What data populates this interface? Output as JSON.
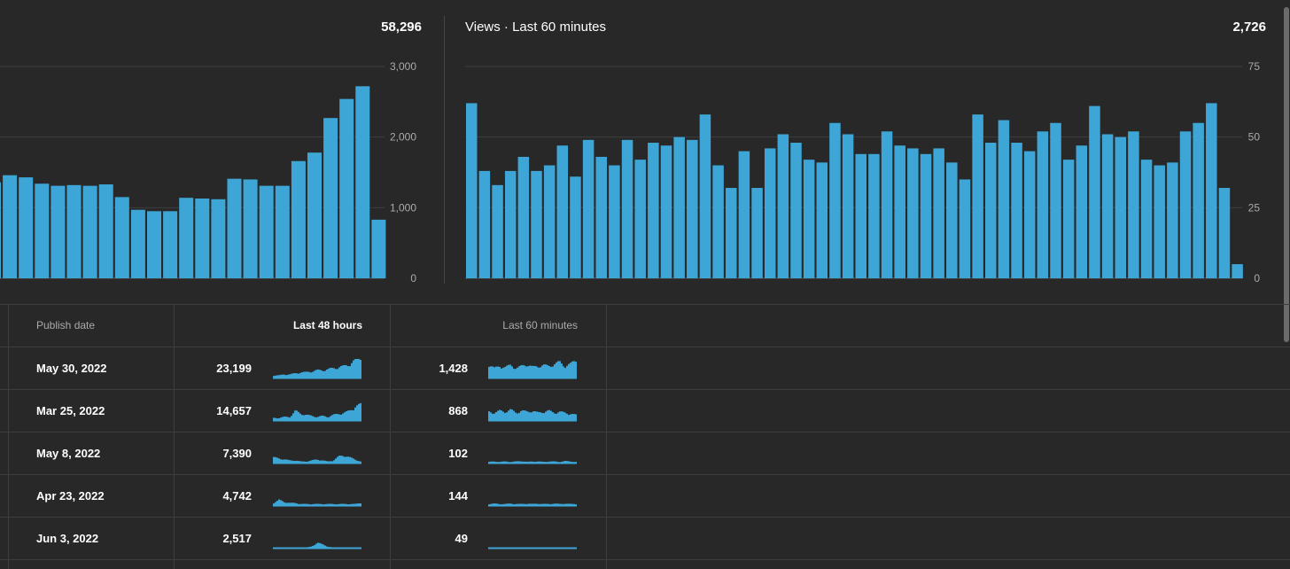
{
  "left_panel": {
    "total": "58,296"
  },
  "right_panel": {
    "title": "Views · Last 60 minutes",
    "total": "2,726"
  },
  "table": {
    "headers": {
      "publish_date": "Publish date",
      "last_48_hours": "Last 48 hours",
      "last_60_minutes": "Last 60 minutes"
    },
    "rows": [
      {
        "date": "May 30, 2022",
        "h48": "23,199",
        "m60": "1,428"
      },
      {
        "date": "Mar 25, 2022",
        "h48": "14,657",
        "m60": "868"
      },
      {
        "date": "May 8, 2022",
        "h48": "7,390",
        "m60": "102"
      },
      {
        "date": "Apr 23, 2022",
        "h48": "4,742",
        "m60": "144"
      },
      {
        "date": "Jun 3, 2022",
        "h48": "2,517",
        "m60": "49"
      }
    ]
  },
  "colors": {
    "bar": "#3ea6d6",
    "background": "#282828",
    "grid": "#3e3e3e"
  },
  "chart_data": [
    {
      "type": "bar",
      "title": "",
      "ylim": [
        0,
        3000
      ],
      "yticks": [
        "3,000",
        "2,000",
        "1,000",
        "0"
      ],
      "values": [
        1360,
        1460,
        1430,
        1340,
        1310,
        1320,
        1310,
        1330,
        1150,
        970,
        950,
        950,
        1140,
        1130,
        1120,
        1410,
        1400,
        1310,
        1310,
        1660,
        1780,
        2270,
        2540,
        2720,
        830
      ]
    },
    {
      "type": "bar",
      "title": "Views · Last 60 minutes",
      "ylim": [
        0,
        75
      ],
      "yticks": [
        "75",
        "50",
        "25",
        "0"
      ],
      "values": [
        62,
        38,
        33,
        38,
        43,
        38,
        40,
        47,
        36,
        49,
        43,
        40,
        49,
        42,
        48,
        47,
        50,
        49,
        58,
        40,
        32,
        45,
        32,
        46,
        51,
        48,
        42,
        41,
        55,
        51,
        44,
        44,
        52,
        47,
        46,
        44,
        46,
        41,
        35,
        58,
        48,
        56,
        48,
        45,
        52,
        55,
        42,
        47,
        61,
        51,
        50,
        52,
        42,
        40,
        41,
        52,
        55,
        62,
        32,
        5
      ]
    }
  ]
}
